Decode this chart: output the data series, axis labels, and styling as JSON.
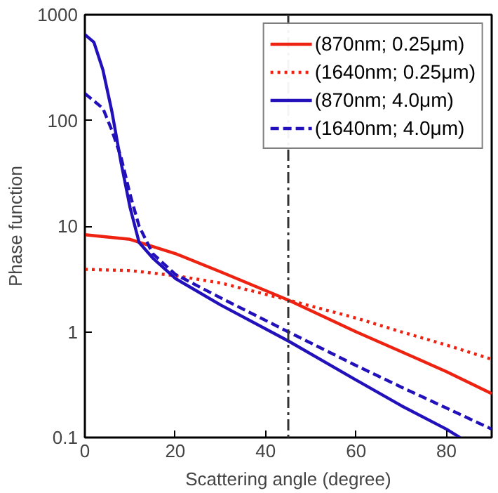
{
  "chart_data": {
    "type": "line",
    "xlabel": "Scattering angle (degree)",
    "ylabel": "Phase function",
    "log": "y",
    "xlim": [
      0,
      90
    ],
    "ylim": [
      0.1,
      1000
    ],
    "xticks": [
      0,
      20,
      40,
      60,
      80
    ],
    "yticks": [
      0.1,
      1,
      10,
      100,
      1000
    ],
    "legend": "top right",
    "grid": false,
    "ref_lines": [
      {
        "axis": "x",
        "value": 45,
        "color": "#333333",
        "line_style": "dashdot"
      }
    ],
    "series": [
      {
        "name": "(870nm; 0.25μm)",
        "color": "#ee2211",
        "line_style": "solid",
        "x": [
          0,
          10,
          20,
          30,
          45,
          60,
          70,
          80,
          90
        ],
        "values": [
          8.3,
          7.5,
          5.5,
          3.7,
          2.0,
          1.0,
          0.65,
          0.42,
          0.26
        ]
      },
      {
        "name": "(1640nm; 0.25μm)",
        "color": "#ee2211",
        "line_style": "dotted",
        "x": [
          0,
          10,
          20,
          30,
          45,
          60,
          70,
          80,
          90
        ],
        "values": [
          3.9,
          3.8,
          3.4,
          2.9,
          2.0,
          1.35,
          1.0,
          0.75,
          0.55
        ]
      },
      {
        "name": "(870nm; 4.0μm)",
        "color": "#2211bb",
        "line_style": "solid",
        "x": [
          0,
          2,
          4,
          6,
          8,
          10,
          12,
          15,
          20,
          30,
          45,
          60,
          70,
          80,
          83
        ],
        "values": [
          650,
          550,
          300,
          120,
          40,
          15,
          7,
          5,
          3.2,
          1.8,
          0.82,
          0.35,
          0.2,
          0.12,
          0.1
        ]
      },
      {
        "name": "(1640nm; 4.0μm)",
        "color": "#2211bb",
        "line_style": "dashed",
        "x": [
          0,
          4,
          6,
          8,
          10,
          12,
          15,
          20,
          30,
          45,
          60,
          70,
          80,
          90
        ],
        "values": [
          180,
          130,
          80,
          45,
          20,
          10,
          5.5,
          3.5,
          2.1,
          1.0,
          0.48,
          0.3,
          0.19,
          0.12
        ]
      }
    ]
  }
}
